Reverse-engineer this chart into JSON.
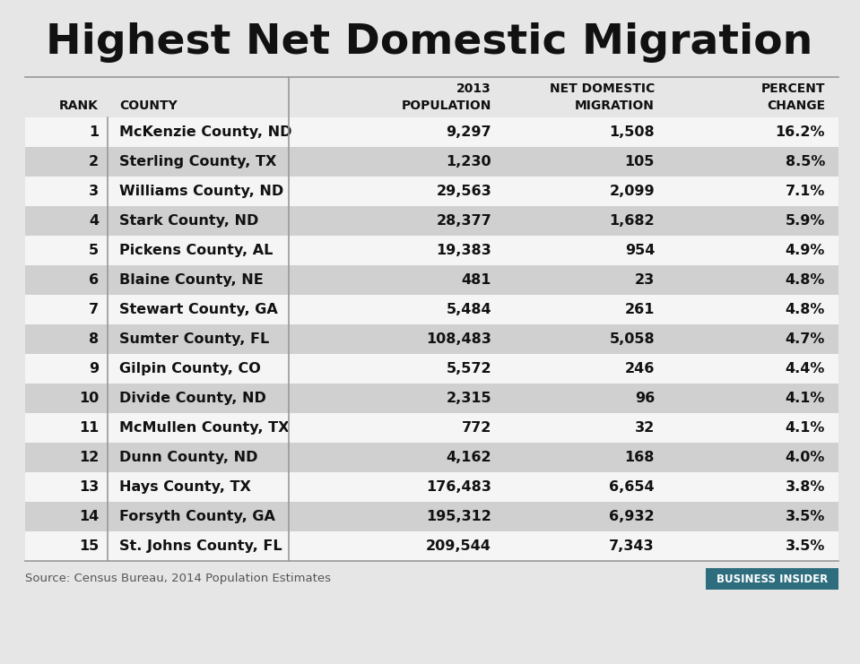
{
  "title": "Highest Net Domestic Migration",
  "background_color": "#e6e6e6",
  "row_bg_white": "#f5f5f5",
  "row_bg_gray": "#d0d0d0",
  "header_row1": [
    "",
    "",
    "2013",
    "NET DOMESTIC",
    "PERCENT"
  ],
  "header_row2": [
    "RANK",
    "COUNTY",
    "POPULATION",
    "MIGRATION",
    "CHANGE"
  ],
  "rows": [
    [
      "1",
      "McKenzie County, ND",
      "9,297",
      "1,508",
      "16.2%"
    ],
    [
      "2",
      "Sterling County, TX",
      "1,230",
      "105",
      "8.5%"
    ],
    [
      "3",
      "Williams County, ND",
      "29,563",
      "2,099",
      "7.1%"
    ],
    [
      "4",
      "Stark County, ND",
      "28,377",
      "1,682",
      "5.9%"
    ],
    [
      "5",
      "Pickens County, AL",
      "19,383",
      "954",
      "4.9%"
    ],
    [
      "6",
      "Blaine County, NE",
      "481",
      "23",
      "4.8%"
    ],
    [
      "7",
      "Stewart County, GA",
      "5,484",
      "261",
      "4.8%"
    ],
    [
      "8",
      "Sumter County, FL",
      "108,483",
      "5,058",
      "4.7%"
    ],
    [
      "9",
      "Gilpin County, CO",
      "5,572",
      "246",
      "4.4%"
    ],
    [
      "10",
      "Divide County, ND",
      "2,315",
      "96",
      "4.1%"
    ],
    [
      "11",
      "McMullen County, TX",
      "772",
      "32",
      "4.1%"
    ],
    [
      "12",
      "Dunn County, ND",
      "4,162",
      "168",
      "4.0%"
    ],
    [
      "13",
      "Hays County, TX",
      "176,483",
      "6,654",
      "3.8%"
    ],
    [
      "14",
      "Forsyth County, GA",
      "195,312",
      "6,932",
      "3.5%"
    ],
    [
      "15",
      "St. Johns County, FL",
      "209,544",
      "7,343",
      "3.5%"
    ]
  ],
  "source_text": "Source: Census Bureau, 2014 Population Estimates",
  "logo_text": "BUSINESS INSIDER",
  "logo_bg": "#2e6d7e",
  "logo_text_color": "#ffffff",
  "title_fontsize": 34,
  "header_fontsize": 10,
  "data_fontsize": 11.5,
  "source_fontsize": 9.5
}
